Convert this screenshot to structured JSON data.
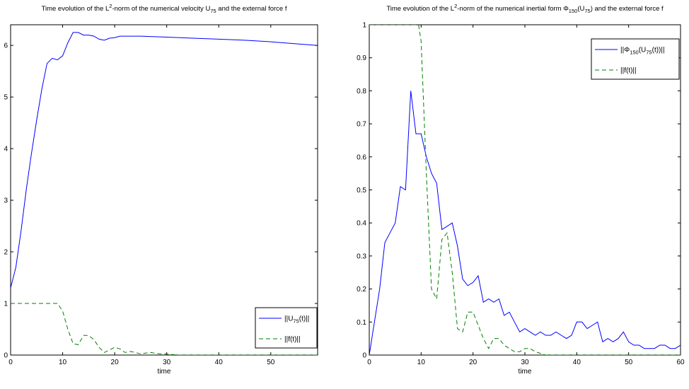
{
  "colors": {
    "series_solid": "#0000ff",
    "series_dashed": "#008000",
    "axis": "#000000"
  },
  "chart_data": [
    {
      "type": "line",
      "title_parts": {
        "prefix": "Time evolution of the  L",
        "sup": "2",
        "mid": "-norm of the numerical velocity U",
        "sub": "75",
        "suffix": " and the external force f"
      },
      "xlabel": "time",
      "xlim": [
        0,
        59
      ],
      "ylim": [
        0,
        6.4
      ],
      "xticks": [
        0,
        10,
        20,
        30,
        40,
        50
      ],
      "yticks": [
        0,
        1,
        2,
        3,
        4,
        5,
        6
      ],
      "legend_position": "bottom-right",
      "legend": [
        {
          "parts": {
            "prefix": "||U",
            "sub": "75",
            "suffix": "(t)||"
          },
          "style": "solid"
        },
        {
          "parts": {
            "prefix": "||f(t)||",
            "sub": "",
            "suffix": ""
          },
          "style": "dashed"
        }
      ],
      "series": [
        {
          "style": "solid",
          "x": [
            0,
            1,
            2,
            3,
            4,
            5,
            6,
            7,
            8,
            9,
            10,
            11,
            12,
            13,
            14,
            15,
            16,
            17,
            18,
            19,
            20,
            21,
            25,
            30,
            35,
            40,
            45,
            50,
            55,
            59
          ],
          "y": [
            1.3,
            1.7,
            2.4,
            3.2,
            3.9,
            4.55,
            5.15,
            5.65,
            5.75,
            5.72,
            5.8,
            6.05,
            6.25,
            6.25,
            6.2,
            6.2,
            6.18,
            6.12,
            6.1,
            6.14,
            6.15,
            6.18,
            6.18,
            6.16,
            6.14,
            6.12,
            6.1,
            6.07,
            6.03,
            6.0
          ]
        },
        {
          "style": "dashed",
          "x": [
            0,
            2,
            4,
            6,
            8,
            9,
            10,
            11,
            12,
            13,
            14,
            15,
            16,
            17,
            18,
            19,
            20,
            21,
            22,
            23,
            24,
            25,
            26,
            27,
            28,
            29,
            30,
            32,
            35,
            40,
            45,
            50,
            55,
            59
          ],
          "y": [
            1.0,
            1.0,
            1.0,
            1.0,
            1.0,
            1.0,
            0.85,
            0.5,
            0.22,
            0.2,
            0.38,
            0.38,
            0.3,
            0.15,
            0.05,
            0.1,
            0.15,
            0.12,
            0.05,
            0.07,
            0.05,
            0.02,
            0.04,
            0.05,
            0.03,
            0.02,
            0.02,
            0.0,
            0.0,
            0.0,
            0.0,
            0.0,
            0.0,
            0.0
          ]
        }
      ]
    },
    {
      "type": "line",
      "title_parts": {
        "prefix": "Time evolution of the L",
        "sup": "2",
        "mid": "-norm of the numerical inertial form  Φ",
        "sub": "150",
        "suffix": "(U",
        "sub2": "75",
        "suffix2": ") and the external force f"
      },
      "xlabel": "time",
      "xlim": [
        0,
        60
      ],
      "ylim": [
        0,
        1.0
      ],
      "xticks": [
        0,
        10,
        20,
        30,
        40,
        50,
        60
      ],
      "yticks": [
        0,
        0.1,
        0.2,
        0.3,
        0.4,
        0.5,
        0.6,
        0.7,
        0.8,
        0.9,
        1
      ],
      "legend_position": "top-right",
      "legend": [
        {
          "parts": {
            "prefix": "||Φ",
            "sub": "150",
            "suffix": "(U",
            "sub2": "75",
            "suffix2": "(t))||"
          },
          "style": "solid"
        },
        {
          "parts": {
            "prefix": "||f(t)||",
            "sub": "",
            "suffix": ""
          },
          "style": "dashed"
        }
      ],
      "series": [
        {
          "style": "solid",
          "x": [
            0,
            1,
            2,
            3,
            4,
            5,
            6,
            7,
            8,
            9,
            10,
            11,
            12,
            13,
            14,
            15,
            16,
            17,
            18,
            19,
            20,
            21,
            22,
            23,
            24,
            25,
            26,
            27,
            28,
            29,
            30,
            31,
            32,
            33,
            34,
            35,
            36,
            37,
            38,
            39,
            40,
            41,
            42,
            43,
            44,
            45,
            46,
            47,
            48,
            49,
            50,
            51,
            52,
            53,
            54,
            55,
            56,
            57,
            58,
            59,
            60
          ],
          "y": [
            0.0,
            0.1,
            0.2,
            0.34,
            0.37,
            0.4,
            0.51,
            0.5,
            0.8,
            0.67,
            0.67,
            0.6,
            0.55,
            0.52,
            0.38,
            0.39,
            0.4,
            0.33,
            0.23,
            0.21,
            0.22,
            0.24,
            0.16,
            0.17,
            0.16,
            0.17,
            0.12,
            0.13,
            0.1,
            0.07,
            0.08,
            0.07,
            0.06,
            0.07,
            0.06,
            0.06,
            0.07,
            0.06,
            0.05,
            0.06,
            0.1,
            0.1,
            0.08,
            0.09,
            0.1,
            0.04,
            0.05,
            0.04,
            0.05,
            0.07,
            0.04,
            0.03,
            0.03,
            0.02,
            0.02,
            0.02,
            0.03,
            0.03,
            0.02,
            0.02,
            0.03
          ]
        },
        {
          "style": "dashed",
          "x": [
            0,
            2,
            4,
            6,
            8,
            9,
            9.5,
            10,
            11,
            12,
            13,
            14,
            15,
            16,
            17,
            18,
            19,
            20,
            21,
            22,
            23,
            24,
            25,
            26,
            27,
            28,
            29,
            30,
            31,
            32,
            34,
            36,
            40,
            45,
            50,
            55,
            60
          ],
          "y": [
            1.0,
            1.0,
            1.0,
            1.0,
            1.0,
            1.0,
            1.0,
            0.95,
            0.55,
            0.2,
            0.17,
            0.35,
            0.37,
            0.25,
            0.08,
            0.07,
            0.13,
            0.13,
            0.09,
            0.05,
            0.02,
            0.05,
            0.05,
            0.03,
            0.02,
            0.01,
            0.01,
            0.02,
            0.02,
            0.01,
            0.0,
            0.0,
            0.0,
            0.0,
            0.0,
            0.0,
            0.0
          ]
        }
      ]
    }
  ]
}
